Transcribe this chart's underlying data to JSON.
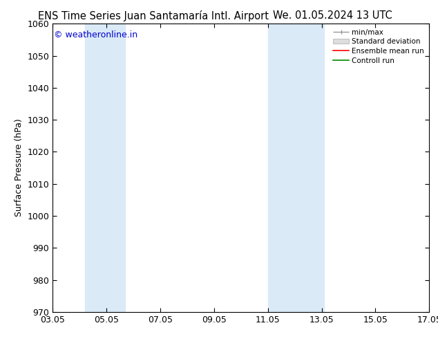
{
  "title_left": "ENS Time Series Juan Santamaría Intl. Airport",
  "title_right": "We. 01.05.2024 13 UTC",
  "ylabel": "Surface Pressure (hPa)",
  "ylim": [
    970,
    1060
  ],
  "yticks": [
    970,
    980,
    990,
    1000,
    1010,
    1020,
    1030,
    1040,
    1050,
    1060
  ],
  "xtick_labels": [
    "03.05",
    "05.05",
    "07.05",
    "09.05",
    "11.05",
    "13.05",
    "15.05",
    "17.05"
  ],
  "xtick_positions": [
    3,
    5,
    7,
    9,
    11,
    13,
    15,
    17
  ],
  "xlim": [
    3,
    17
  ],
  "shaded_bands": [
    {
      "x_start": 4.2,
      "x_end": 5.7,
      "color": "#daeaf7"
    },
    {
      "x_start": 11.0,
      "x_end": 13.1,
      "color": "#daeaf7"
    }
  ],
  "watermark": "© weatheronline.in",
  "watermark_color": "#0000cc",
  "legend_labels": [
    "min/max",
    "Standard deviation",
    "Ensemble mean run",
    "Controll run"
  ],
  "legend_colors_line": [
    "#999999",
    "#cccccc",
    "#ff0000",
    "#008800"
  ],
  "background_color": "#ffffff",
  "plot_bg_color": "#ffffff",
  "title_fontsize": 10.5,
  "axis_fontsize": 9,
  "watermark_fontsize": 9,
  "tick_direction": "in"
}
